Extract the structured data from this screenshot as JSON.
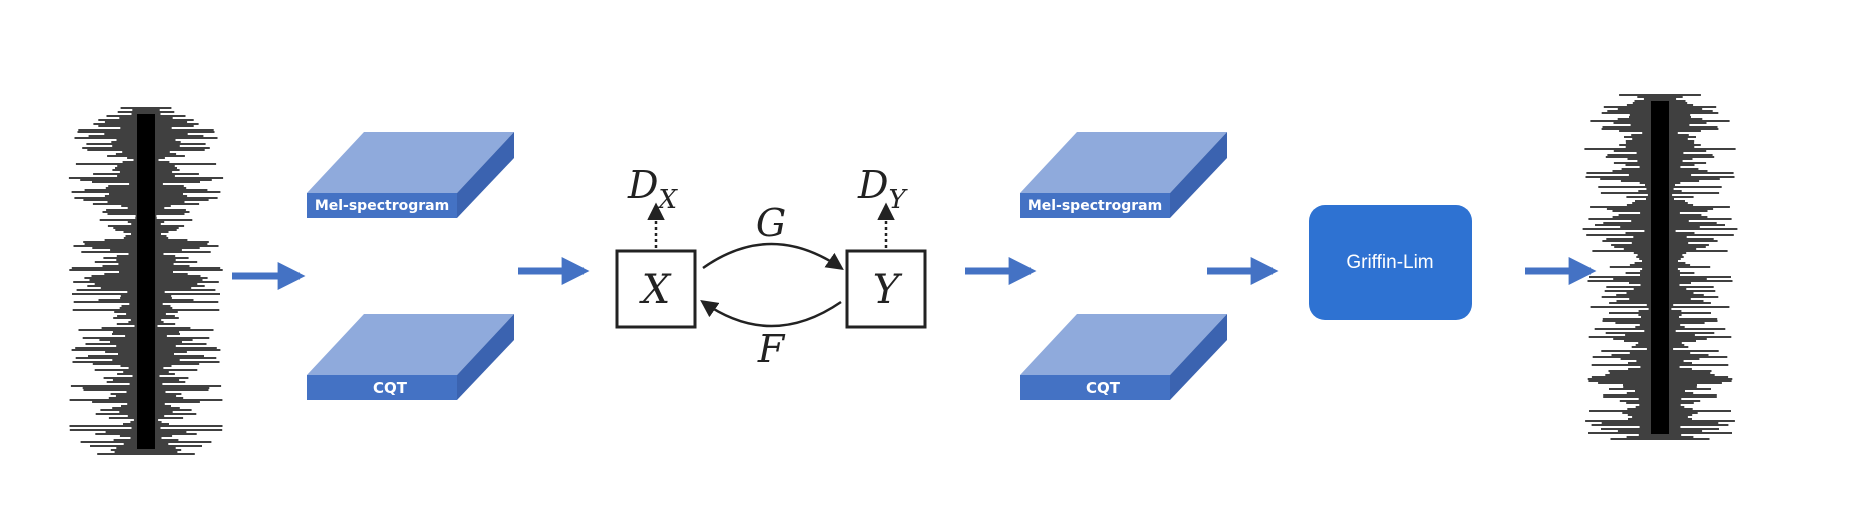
{
  "colors": {
    "block_top": "#8faadc",
    "block_front": "#4472c4",
    "block_side": "#3b63b0",
    "arrow": "#4472c4",
    "griffin": "#2e72d2",
    "waveform": "#000000",
    "ink": "#222222"
  },
  "input_blocks": {
    "mel_label": "Mel-spectrogram",
    "cqt_label": "CQT"
  },
  "output_blocks": {
    "mel_label": "Mel-spectrogram",
    "cqt_label": "CQT"
  },
  "cyclegan": {
    "node_x": "X",
    "node_y": "Y",
    "disc_x_base": "D",
    "disc_x_sub": "X",
    "disc_y_base": "D",
    "disc_y_sub": "Y",
    "mapping_g": "G",
    "mapping_f": "F"
  },
  "vocoder": {
    "label": "Griffin-Lim"
  },
  "icons": [
    "input-waveform-icon",
    "output-waveform-icon",
    "flow-arrow-icon"
  ]
}
